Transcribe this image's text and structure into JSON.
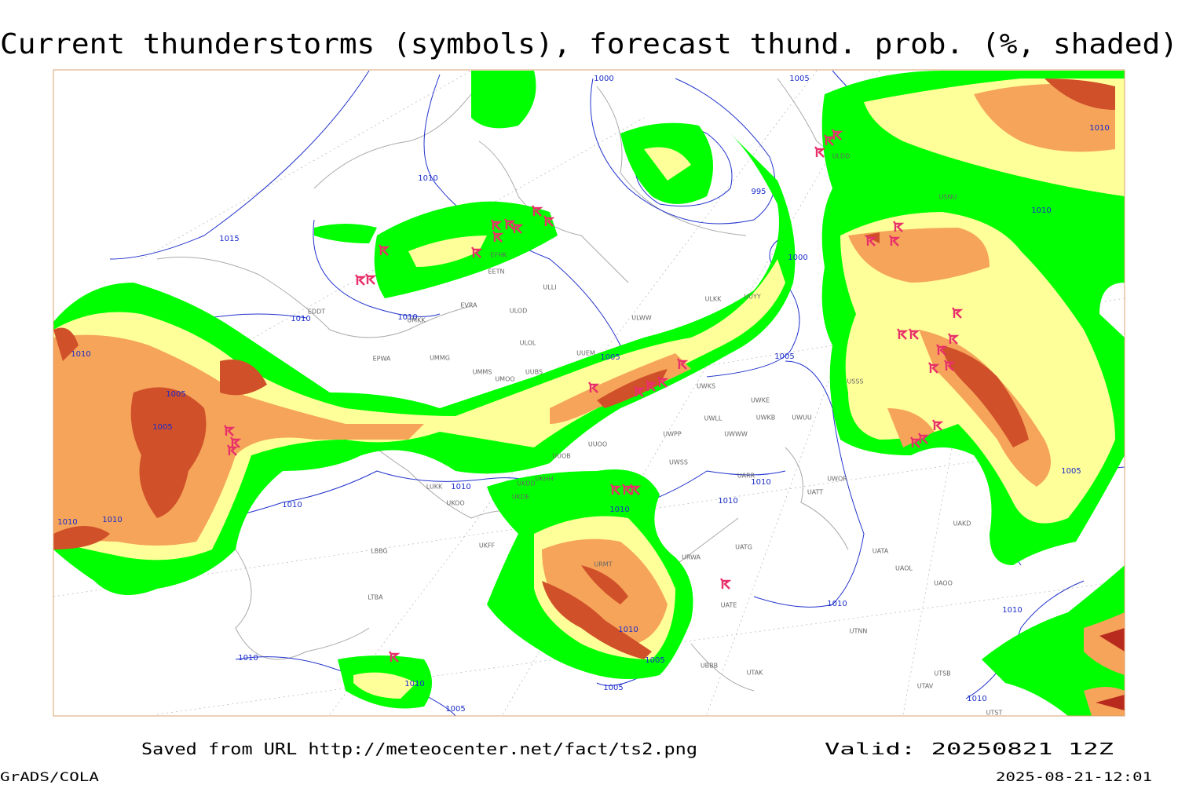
{
  "title": "Current thunderstorms (symbols), forecast thund. prob. (%, shaded)",
  "footer": {
    "saved": "Saved from URL http://meteocenter.net/fact/ts2.png",
    "valid": "Valid: 20250821 12Z",
    "software": "GrADS/COLA",
    "timestamp": "2025-08-21-12:01"
  },
  "isobar_labels": [
    "1000",
    "1005",
    "1010",
    "1015",
    "995",
    "1000",
    "1010",
    "1010",
    "1010",
    "1010",
    "1010",
    "1005",
    "1005",
    "1005",
    "1005",
    "1010",
    "1010",
    "1010",
    "1010",
    "1010",
    "1010",
    "1010",
    "1005",
    "1010",
    "1010",
    "1005",
    "1010",
    "1010",
    "1005",
    "1005",
    "1010",
    "1010"
  ],
  "stations": [
    "ULDD",
    "USNU",
    "EFHK",
    "EETN",
    "ULLI",
    "ULKK",
    "UUYY",
    "EVRA",
    "ULOD",
    "UMKK",
    "EDDT",
    "ULWW",
    "ULOL",
    "UUEM",
    "EPWA",
    "UMMG",
    "UMMS",
    "UMOO",
    "UUBS",
    "USSS",
    "UWKS",
    "UWKE",
    "UWKB",
    "UWUU",
    "UWLL",
    "UWWW",
    "UWPP",
    "UUOO",
    "UUOB",
    "UWSS",
    "UKDD",
    "UKHH",
    "LUKK",
    "UKOO",
    "UKDE",
    "URWA",
    "UATG",
    "UATT",
    "UWOR",
    "UARR",
    "UAKD",
    "UATA",
    "UAOL",
    "UAOO",
    "UATE",
    "UTNN",
    "UBBB",
    "UTAK",
    "LBBG",
    "LTBA",
    "UTSB",
    "UTAV",
    "UTST",
    "UKFF",
    "URMT"
  ]
}
